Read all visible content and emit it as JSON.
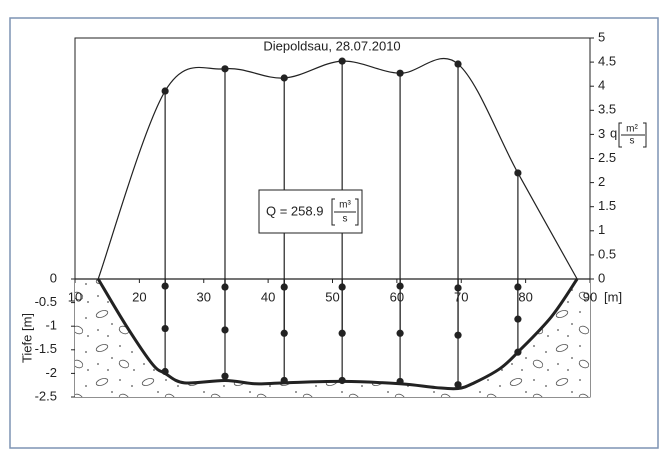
{
  "chart_data": [
    {
      "type": "line",
      "title": "Diepoldsau, 28.07.2010",
      "x": [
        13.6,
        24,
        33.3,
        42.5,
        51.5,
        60.5,
        69.5,
        78.8,
        88
      ],
      "values": [
        0,
        3.9,
        4.36,
        4.17,
        4.52,
        4.27,
        4.46,
        2.2,
        0
      ],
      "xlim": [
        10,
        90
      ],
      "xticks": [
        10,
        20,
        30,
        40,
        50,
        60,
        70,
        80,
        90
      ],
      "xunit": "[m]",
      "y2lim": [
        0,
        5
      ],
      "y2ticks": [
        0,
        0.5,
        1,
        1.5,
        2,
        2.5,
        3,
        3.5,
        4,
        4.5,
        5
      ],
      "y2label": {
        "symbol": "q",
        "numerator": "m²",
        "denominator": "s"
      },
      "annotation": {
        "text": "Q = 258.9",
        "numerator": "m³",
        "denominator": "s"
      },
      "color": "#222"
    },
    {
      "type": "cross-section",
      "ylabel": "Tiefe [m]",
      "ylim": [
        -2.5,
        0
      ],
      "yticks": [
        0,
        -0.5,
        -1,
        -1.5,
        -2,
        -2.5
      ],
      "bed_x": [
        13.6,
        18,
        22,
        24,
        27,
        33.3,
        38,
        42.5,
        51.5,
        60.5,
        66,
        69.5,
        72,
        76,
        78.8,
        84,
        88
      ],
      "bed_y": [
        0,
        -1.0,
        -1.8,
        -2.0,
        -2.2,
        -2.15,
        -2.22,
        -2.2,
        -2.17,
        -2.22,
        -2.3,
        -2.32,
        -2.2,
        -1.9,
        -1.55,
        -0.8,
        0
      ],
      "x": [
        24,
        24,
        24,
        33.3,
        33.3,
        33.3,
        42.5,
        42.5,
        42.5,
        51.5,
        51.5,
        51.5,
        60.5,
        60.5,
        60.5,
        69.5,
        69.5,
        69.5,
        78.8,
        78.8,
        78.8
      ],
      "values": [
        -0.15,
        -1.05,
        -1.96,
        -0.17,
        -1.08,
        -2.06,
        -0.17,
        -1.15,
        -2.15,
        -0.17,
        -1.15,
        -2.15,
        -0.15,
        -1.15,
        -2.17,
        -0.19,
        -1.19,
        -2.24,
        -0.17,
        -0.85,
        -1.55
      ],
      "color": "#222"
    }
  ]
}
